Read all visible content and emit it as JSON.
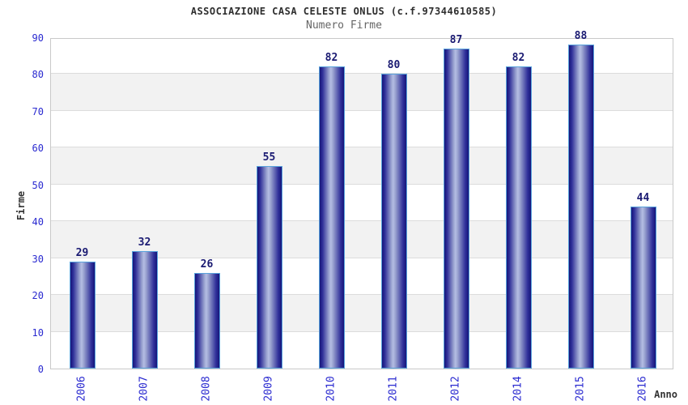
{
  "chart_data": {
    "type": "bar",
    "title": "ASSOCIAZIONE CASA CELESTE ONLUS (c.f.97344610585)",
    "subtitle": "Numero Firme",
    "xlabel": "Anno",
    "ylabel": "Firme",
    "categories": [
      "2006",
      "2007",
      "2008",
      "2009",
      "2010",
      "2011",
      "2012",
      "2014",
      "2015",
      "2016"
    ],
    "values": [
      29,
      32,
      26,
      55,
      82,
      80,
      87,
      82,
      88,
      44
    ],
    "ylim": [
      0,
      90
    ],
    "ytick_step": 10,
    "yticks": [
      0,
      10,
      20,
      30,
      40,
      50,
      60,
      70,
      80,
      90
    ],
    "legend_position": "none",
    "grid": "horizontal-bands",
    "colors": {
      "bar_dark": "#15157a",
      "bar_highlight": "#b4bde3",
      "bar_border": "#58a2dc",
      "tick_label": "#2a2ad0",
      "value_label": "#1a1a72",
      "title": "#2e2e2e",
      "subtitle": "#666666",
      "axis_label": "#333333",
      "band": "#f2f2f2",
      "gridline": "#dcdcdc",
      "plot_border": "#c9c9c9",
      "background": "#ffffff"
    }
  }
}
